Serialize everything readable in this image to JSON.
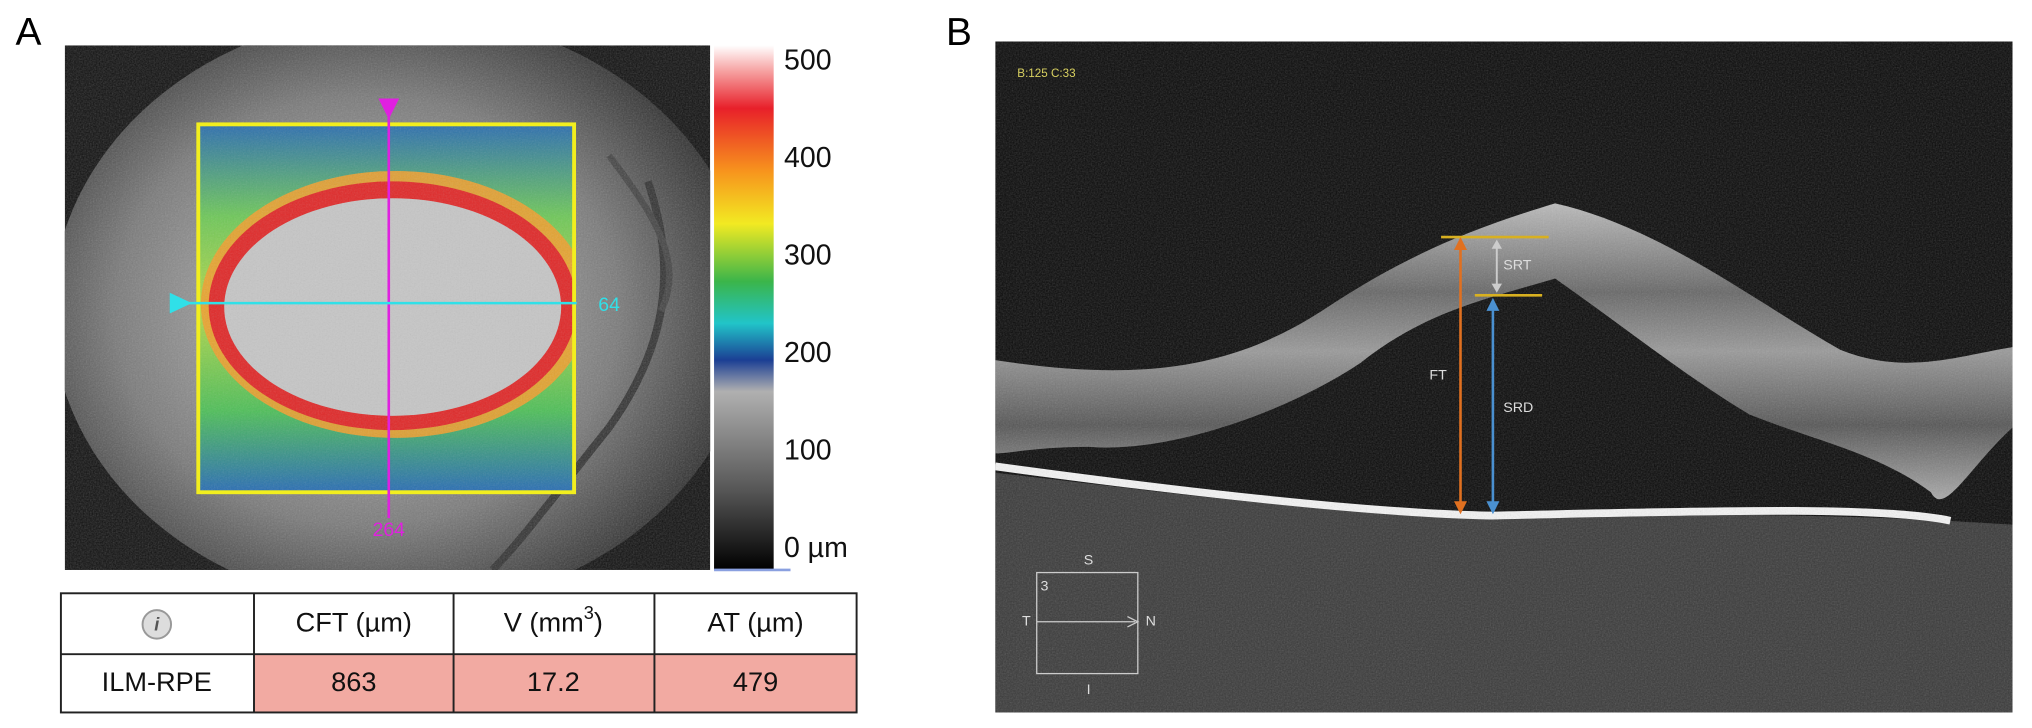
{
  "panel_a": {
    "label": "A",
    "fundus_labels": {
      "horizontal_scan": "64",
      "vertical_scan": "264"
    },
    "colorbar": {
      "ticks": [
        500,
        400,
        300,
        200,
        100,
        0
      ],
      "unit": "µm"
    },
    "table": {
      "header": {
        "cft": "CFT (µm)",
        "v_prefix": "V (mm",
        "v_sup": "3",
        "v_suffix": ")",
        "at": "AT (µm)"
      },
      "row": {
        "label": "ILM-RPE",
        "cft": 863,
        "v": 17.2,
        "at": 479
      }
    }
  },
  "panel_b": {
    "label": "B",
    "scan_info": "B:125 C:33",
    "annotations": {
      "srt": "SRT",
      "ft": "FT",
      "srd": "SRD"
    },
    "orientation": {
      "top": "S",
      "left": "T",
      "right": "N",
      "bottom": "I",
      "number": "3"
    }
  }
}
